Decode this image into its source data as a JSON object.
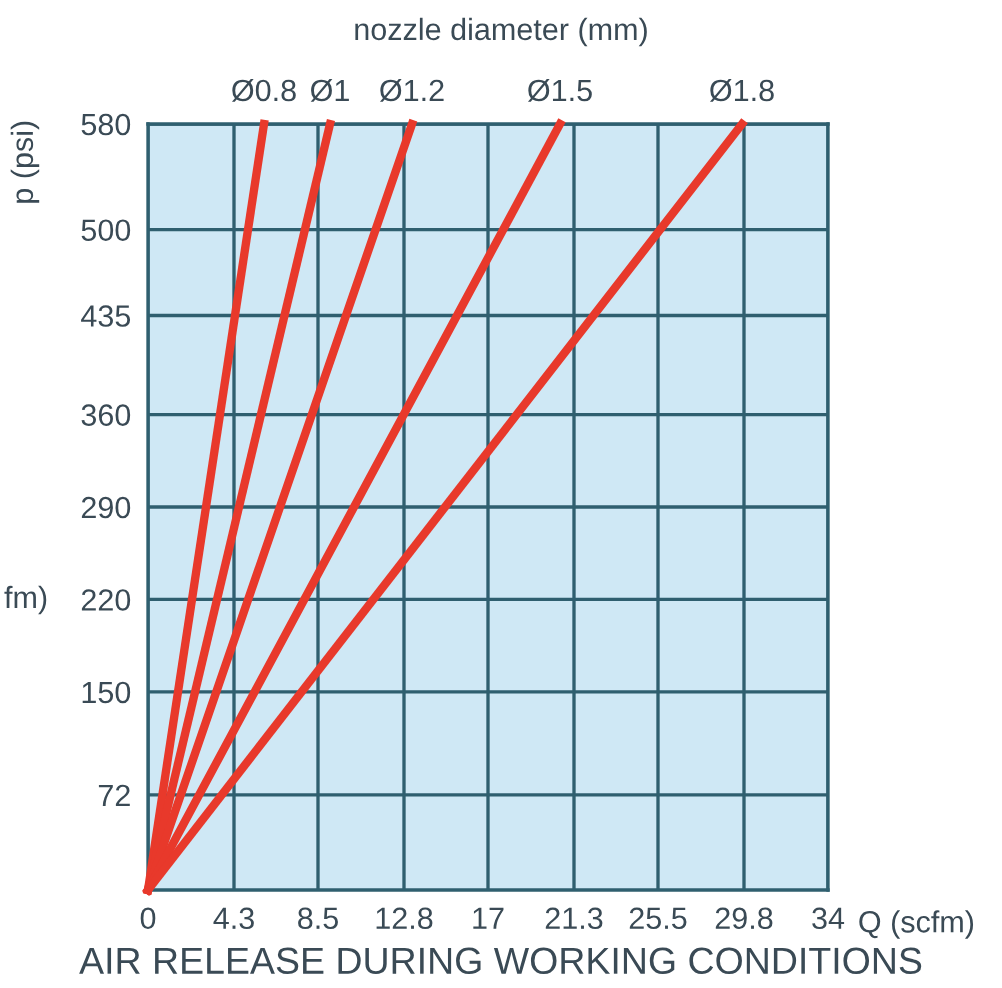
{
  "chart_data": {
    "type": "line",
    "title": "AIR RELEASE DURING WORKING CONDITIONS",
    "subtitle": "nozzle diameter (mm)",
    "xlabel": "Q (scfm)",
    "ylabel": "p (psi)",
    "annotations": [
      "fm)"
    ],
    "xlim": [
      0,
      34
    ],
    "ylim": [
      0,
      580
    ],
    "xticks": [
      0,
      4.3,
      8.5,
      12.8,
      17,
      21.3,
      25.5,
      29.8,
      34
    ],
    "yticks": [
      72,
      150,
      220,
      290,
      360,
      435,
      500,
      580
    ],
    "grid": true,
    "line_style": "solid",
    "series": [
      {
        "name": "Ø0.8",
        "color": "#e8392b",
        "x": [
          0,
          5.8
        ],
        "values": [
          0,
          580
        ]
      },
      {
        "name": "Ø1",
        "color": "#e8392b",
        "x": [
          0,
          9.1
        ],
        "values": [
          0,
          580
        ]
      },
      {
        "name": "Ø1.2",
        "color": "#e8392b",
        "x": [
          0,
          13.2
        ],
        "values": [
          0,
          580
        ]
      },
      {
        "name": "Ø1.5",
        "color": "#e8392b",
        "x": [
          0,
          20.6
        ],
        "values": [
          0,
          580
        ]
      },
      {
        "name": "Ø1.8",
        "color": "#e8392b",
        "x": [
          0,
          29.7
        ],
        "values": [
          0,
          580
        ]
      }
    ]
  }
}
